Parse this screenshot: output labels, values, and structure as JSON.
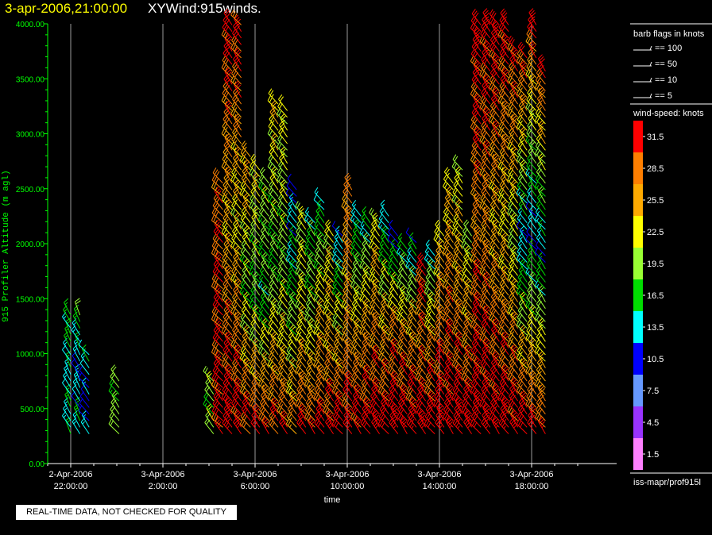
{
  "header": {
    "datetime": "3-apr-2006,21:00:00",
    "plot_name": "XYWind:915winds."
  },
  "notice": "REAL-TIME DATA, NOT CHECKED FOR QUALITY",
  "source": "iss-mapr/prof915l",
  "colors": {
    "axis": "#00ff00",
    "grid": "#9a9a9a",
    "background": "#000000"
  },
  "chart_data": {
    "type": "scatter",
    "title": "XYWind:915winds.",
    "xlabel": "time",
    "ylabel": "915 Profiler Altitude (m agl)",
    "ylim": [
      0,
      4000
    ],
    "xlim": [
      "2-Apr-2006 20:45:00",
      "3-Apr-2006 21:00:00"
    ],
    "y_ticks": [
      "0.00",
      "500.00",
      "1000.00",
      "1500.00",
      "2000.00",
      "2500.00",
      "3000.00",
      "3500.00",
      "4000.00"
    ],
    "x_ticks": [
      {
        "date": "2-Apr-2006",
        "time": "22:00:00"
      },
      {
        "date": "3-Apr-2006",
        "time": "2:00:00"
      },
      {
        "date": "3-Apr-2006",
        "time": "6:00:00"
      },
      {
        "date": "3-Apr-2006",
        "time": "10:00:00"
      },
      {
        "date": "3-Apr-2006",
        "time": "14:00:00"
      },
      {
        "date": "3-Apr-2006",
        "time": "18:00:00"
      }
    ],
    "grid": true,
    "legend_placement": "right",
    "barb_legend": {
      "title": "barb flags in knots",
      "entries": [
        "== 100",
        "== 50",
        "== 10",
        "== 5"
      ]
    },
    "speed_legend": {
      "title": "wind-speed: knots",
      "levels": [
        {
          "label": "31.5",
          "color": "#ff0000"
        },
        {
          "label": "28.5",
          "color": "#ff7f00"
        },
        {
          "label": "25.5",
          "color": "#ffaa00"
        },
        {
          "label": "22.5",
          "color": "#ffff00"
        },
        {
          "label": "19.5",
          "color": "#99ff33"
        },
        {
          "label": "16.5",
          "color": "#00dd00"
        },
        {
          "label": "13.5",
          "color": "#00ffff"
        },
        {
          "label": "10.5",
          "color": "#0000ff"
        },
        {
          "label": "7.5",
          "color": "#6699ff"
        },
        {
          "label": "4.5",
          "color": "#9933ff"
        },
        {
          "label": "1.5",
          "color": "#ff80ff"
        }
      ]
    },
    "profiles": [
      {
        "hour": 0.1,
        "top": 1400,
        "spd": [
          15,
          13,
          17
        ],
        "dir": 330
      },
      {
        "hour": 0.5,
        "top": 1350,
        "spd": [
          14,
          12,
          16
        ],
        "dir": 330
      },
      {
        "hour": 0.9,
        "top": 1000,
        "spd": [
          11,
          10,
          14
        ],
        "dir": 320
      },
      {
        "hour": 2.2,
        "top": 800,
        "spd": [
          20,
          18,
          19
        ],
        "dir": 320
      },
      {
        "hour": 6.3,
        "top": 800,
        "spd": [
          19,
          18,
          20
        ],
        "dir": 320
      },
      {
        "hour": 6.7,
        "top": 2600,
        "spd": [
          31,
          30,
          28
        ],
        "dir": 315
      },
      {
        "hour": 7.1,
        "top": 4000,
        "spd": [
          33,
          24,
          31
        ],
        "dir": 320
      },
      {
        "hour": 7.5,
        "top": 4000,
        "spd": [
          32,
          22,
          31
        ],
        "dir": 320
      },
      {
        "hour": 7.9,
        "top": 2800,
        "spd": [
          31,
          18,
          26
        ],
        "dir": 320
      },
      {
        "hour": 8.3,
        "top": 2700,
        "spd": [
          31,
          17,
          23
        ],
        "dir": 320
      },
      {
        "hour": 8.7,
        "top": 2600,
        "spd": [
          30,
          16,
          20
        ],
        "dir": 320
      },
      {
        "hour": 9.1,
        "top": 3300,
        "spd": [
          30,
          17,
          24
        ],
        "dir": 320
      },
      {
        "hour": 9.5,
        "top": 3250,
        "spd": [
          29,
          18,
          22
        ],
        "dir": 320
      },
      {
        "hour": 9.9,
        "top": 2500,
        "spd": [
          28,
          17,
          11
        ],
        "dir": 320
      },
      {
        "hour": 10.3,
        "top": 2300,
        "spd": [
          31,
          22,
          20
        ],
        "dir": 320
      },
      {
        "hour": 10.7,
        "top": 2200,
        "spd": [
          30,
          20,
          15
        ],
        "dir": 320
      },
      {
        "hour": 11.1,
        "top": 2400,
        "spd": [
          31,
          23,
          13
        ],
        "dir": 320
      },
      {
        "hour": 11.5,
        "top": 2100,
        "spd": [
          31,
          24,
          21
        ],
        "dir": 320
      },
      {
        "hour": 11.9,
        "top": 2100,
        "spd": [
          32,
          22,
          11
        ],
        "dir": 320
      },
      {
        "hour": 12.3,
        "top": 2500,
        "spd": [
          32,
          25,
          27
        ],
        "dir": 320
      },
      {
        "hour": 12.7,
        "top": 2300,
        "spd": [
          32,
          23,
          13
        ],
        "dir": 320
      },
      {
        "hour": 13.1,
        "top": 2200,
        "spd": [
          32,
          25,
          14
        ],
        "dir": 320
      },
      {
        "hour": 13.5,
        "top": 2200,
        "spd": [
          33,
          26,
          21
        ],
        "dir": 320
      },
      {
        "hour": 13.9,
        "top": 2300,
        "spd": [
          32,
          24,
          12
        ],
        "dir": 320
      },
      {
        "hour": 14.3,
        "top": 2100,
        "spd": [
          33,
          27,
          10
        ],
        "dir": 320
      },
      {
        "hour": 14.7,
        "top": 2000,
        "spd": [
          33,
          26,
          14
        ],
        "dir": 320
      },
      {
        "hour": 15.1,
        "top": 2050,
        "spd": [
          33,
          25,
          11
        ],
        "dir": 320
      },
      {
        "hour": 15.5,
        "top": 1800,
        "spd": [
          33,
          27,
          30
        ],
        "dir": 320
      },
      {
        "hour": 15.9,
        "top": 1900,
        "spd": [
          33,
          26,
          13
        ],
        "dir": 320
      },
      {
        "hour": 16.3,
        "top": 2100,
        "spd": [
          33,
          28,
          23
        ],
        "dir": 320
      },
      {
        "hour": 16.7,
        "top": 2600,
        "spd": [
          32,
          28,
          22
        ],
        "dir": 320
      },
      {
        "hour": 17.1,
        "top": 2700,
        "spd": [
          33,
          26,
          20
        ],
        "dir": 320
      },
      {
        "hour": 17.5,
        "top": 2100,
        "spd": [
          33,
          26,
          19
        ],
        "dir": 320
      },
      {
        "hour": 17.9,
        "top": 4000,
        "spd": [
          33,
          27,
          32
        ],
        "dir": 320
      },
      {
        "hour": 18.3,
        "top": 4000,
        "spd": [
          33,
          26,
          32
        ],
        "dir": 320
      },
      {
        "hour": 18.7,
        "top": 4000,
        "spd": [
          33,
          24,
          32
        ],
        "dir": 320
      },
      {
        "hour": 19.1,
        "top": 4000,
        "spd": [
          33,
          22,
          32
        ],
        "dir": 320
      },
      {
        "hour": 19.5,
        "top": 3800,
        "spd": [
          32,
          20,
          31
        ],
        "dir": 320
      },
      {
        "hour": 19.9,
        "top": 3700,
        "spd": [
          32,
          12,
          31
        ],
        "dir": 320
      },
      {
        "hour": 20.3,
        "top": 4000,
        "spd": [
          31,
          11,
          31
        ],
        "dir": 320
      },
      {
        "hour": 20.7,
        "top": 3600,
        "spd": [
          30,
          12,
          30
        ],
        "dir": 320
      }
    ]
  }
}
